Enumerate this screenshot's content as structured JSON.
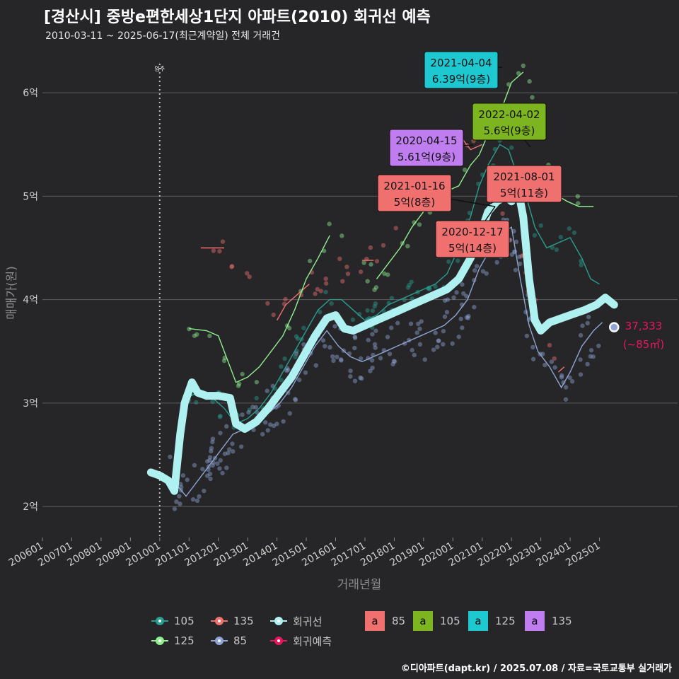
{
  "title": "[경산시] 중방e편한세상1단지 아파트(2010) 회귀선 예측",
  "subtitle": "2010-03-11 ~ 2025-06-17(최근계약일) 전체 거래건",
  "caption": "©디아파트(dapt.kr) / 2025.07.08 / 자료=국토교통부 실거래가",
  "chart_data": {
    "type": "scatter",
    "xlabel": "거래년월",
    "ylabel": "매매가(원)",
    "x_ticks": [
      "200601",
      "200701",
      "200801",
      "200901",
      "201001",
      "201101",
      "201201",
      "201301",
      "201401",
      "201501",
      "201601",
      "201701",
      "201801",
      "201901",
      "202001",
      "202101",
      "202201",
      "202301",
      "202401",
      "202501"
    ],
    "y_ticks": [
      {
        "value": 2,
        "label": "2억"
      },
      {
        "value": 3,
        "label": "3억"
      },
      {
        "value": 4,
        "label": "4억"
      },
      {
        "value": 5,
        "label": "5억"
      },
      {
        "value": 6,
        "label": "6억"
      }
    ],
    "ylim": [
      1.7,
      6.5
    ],
    "grid": true,
    "vline": {
      "x": "2010-01",
      "label": "입주"
    },
    "series": [
      {
        "name": "105",
        "color": "#2a9d8f",
        "line": [
          [
            2010.9,
            3.05
          ],
          [
            2011.3,
            3.1
          ],
          [
            2011.8,
            3.05
          ],
          [
            2012.2,
            2.95
          ],
          [
            2012.6,
            2.8
          ],
          [
            2013.0,
            2.85
          ],
          [
            2013.4,
            2.95
          ],
          [
            2013.8,
            3.1
          ],
          [
            2014.2,
            3.3
          ],
          [
            2014.6,
            3.5
          ],
          [
            2015.0,
            3.7
          ],
          [
            2015.4,
            3.9
          ],
          [
            2015.8,
            4.0
          ],
          [
            2016.2,
            4.0
          ],
          [
            2016.6,
            3.9
          ],
          [
            2017.0,
            3.8
          ],
          [
            2017.4,
            3.85
          ],
          [
            2017.8,
            3.95
          ],
          [
            2018.2,
            4.0
          ],
          [
            2018.6,
            4.05
          ],
          [
            2019.0,
            4.1
          ],
          [
            2019.4,
            4.15
          ],
          [
            2019.8,
            4.25
          ],
          [
            2020.2,
            4.5
          ],
          [
            2020.6,
            4.8
          ],
          [
            2020.9,
            5.1
          ],
          [
            2021.2,
            5.3
          ],
          [
            2021.6,
            5.5
          ],
          [
            2021.9,
            5.45
          ],
          [
            2022.2,
            5.2
          ],
          [
            2022.5,
            5.0
          ],
          [
            2022.8,
            4.7
          ],
          [
            2023.2,
            4.5
          ],
          [
            2023.6,
            4.55
          ],
          [
            2024.0,
            4.6
          ],
          [
            2024.4,
            4.4
          ],
          [
            2024.7,
            4.2
          ],
          [
            2025.0,
            4.15
          ]
        ]
      },
      {
        "name": "135",
        "color": "#f07070",
        "line": [
          [
            2011.4,
            4.5
          ],
          [
            2012.2,
            4.5
          ],
          [
            2014.0,
            3.8
          ],
          [
            2014.3,
            3.95
          ],
          [
            2014.7,
            4.05
          ],
          [
            2015.1,
            4.15
          ],
          [
            2016.9,
            4.38
          ],
          [
            2017.3,
            4.38
          ],
          [
            2019.2,
            5.3
          ],
          [
            2019.8,
            5.45
          ],
          [
            2020.2,
            5.6
          ],
          [
            2020.6,
            5.45
          ],
          [
            2021.0,
            5.5
          ],
          [
            2023.6,
            3.3
          ],
          [
            2023.8,
            3.35
          ]
        ]
      },
      {
        "name": "125",
        "color": "#90ee90",
        "line": [
          [
            2011.0,
            3.72
          ],
          [
            2011.6,
            3.7
          ],
          [
            2012.0,
            3.65
          ],
          [
            2012.6,
            3.2
          ],
          [
            2013.0,
            3.25
          ],
          [
            2013.4,
            3.35
          ],
          [
            2013.8,
            3.5
          ],
          [
            2014.2,
            3.65
          ],
          [
            2014.6,
            3.9
          ],
          [
            2015.0,
            4.2
          ],
          [
            2015.4,
            4.4
          ],
          [
            2015.8,
            4.62
          ],
          [
            2017.4,
            4.2
          ],
          [
            2017.8,
            4.35
          ],
          [
            2018.2,
            4.5
          ],
          [
            2018.6,
            4.7
          ],
          [
            2019.0,
            4.85
          ],
          [
            2019.4,
            5.0
          ],
          [
            2019.8,
            5.05
          ],
          [
            2020.2,
            5.1
          ],
          [
            2020.6,
            5.3
          ],
          [
            2020.9,
            5.4
          ],
          [
            2021.2,
            5.6
          ],
          [
            2021.6,
            5.8
          ],
          [
            2022.0,
            6.1
          ],
          [
            2022.4,
            6.2
          ],
          [
            2023.6,
            5.0
          ],
          [
            2023.9,
            4.95
          ],
          [
            2024.3,
            4.9
          ],
          [
            2024.8,
            4.9
          ]
        ]
      },
      {
        "name": "85",
        "color": "#8ea4d2",
        "line": [
          [
            2010.3,
            2.25
          ],
          [
            2010.6,
            2.2
          ],
          [
            2010.9,
            2.1
          ],
          [
            2011.3,
            2.25
          ],
          [
            2011.7,
            2.4
          ],
          [
            2012.1,
            2.55
          ],
          [
            2012.5,
            2.7
          ],
          [
            2012.9,
            2.75
          ],
          [
            2013.3,
            2.85
          ],
          [
            2013.7,
            2.9
          ],
          [
            2014.1,
            3.0
          ],
          [
            2014.5,
            3.15
          ],
          [
            2014.9,
            3.35
          ],
          [
            2015.3,
            3.55
          ],
          [
            2015.7,
            3.7
          ],
          [
            2016.1,
            3.55
          ],
          [
            2016.5,
            3.45
          ],
          [
            2016.9,
            3.4
          ],
          [
            2017.3,
            3.45
          ],
          [
            2017.7,
            3.5
          ],
          [
            2018.1,
            3.55
          ],
          [
            2018.5,
            3.6
          ],
          [
            2018.9,
            3.65
          ],
          [
            2019.3,
            3.7
          ],
          [
            2019.7,
            3.75
          ],
          [
            2020.1,
            3.85
          ],
          [
            2020.5,
            4.0
          ],
          [
            2020.9,
            4.3
          ],
          [
            2021.3,
            4.5
          ],
          [
            2021.7,
            4.65
          ],
          [
            2022.0,
            4.7
          ],
          [
            2022.3,
            4.2
          ],
          [
            2022.6,
            3.75
          ],
          [
            2022.9,
            3.5
          ],
          [
            2023.3,
            3.35
          ],
          [
            2023.7,
            3.15
          ],
          [
            2024.0,
            3.3
          ],
          [
            2024.4,
            3.55
          ],
          [
            2024.8,
            3.7
          ],
          [
            2025.1,
            3.78
          ]
        ]
      },
      {
        "name": "회귀선",
        "color": "#aff0f0",
        "line": [
          [
            2009.7,
            2.33
          ],
          [
            2010.0,
            2.3
          ],
          [
            2010.3,
            2.25
          ],
          [
            2010.5,
            2.15
          ],
          [
            2010.7,
            2.7
          ],
          [
            2010.85,
            3.0
          ],
          [
            2011.1,
            3.2
          ],
          [
            2011.3,
            3.1
          ],
          [
            2011.6,
            3.07
          ],
          [
            2012.0,
            3.07
          ],
          [
            2012.4,
            3.05
          ],
          [
            2012.6,
            2.8
          ],
          [
            2012.9,
            2.75
          ],
          [
            2013.3,
            2.82
          ],
          [
            2013.7,
            2.95
          ],
          [
            2014.1,
            3.1
          ],
          [
            2014.5,
            3.25
          ],
          [
            2014.9,
            3.45
          ],
          [
            2015.3,
            3.65
          ],
          [
            2015.7,
            3.82
          ],
          [
            2016.0,
            3.85
          ],
          [
            2016.3,
            3.72
          ],
          [
            2016.6,
            3.7
          ],
          [
            2017.0,
            3.75
          ],
          [
            2017.4,
            3.8
          ],
          [
            2017.8,
            3.85
          ],
          [
            2018.2,
            3.9
          ],
          [
            2018.6,
            3.95
          ],
          [
            2019.0,
            4.0
          ],
          [
            2019.4,
            4.05
          ],
          [
            2019.8,
            4.1
          ],
          [
            2020.2,
            4.2
          ],
          [
            2020.6,
            4.4
          ],
          [
            2020.9,
            4.6
          ],
          [
            2021.2,
            4.85
          ],
          [
            2021.5,
            4.95
          ],
          [
            2021.8,
            5.0
          ],
          [
            2022.0,
            4.95
          ],
          [
            2022.2,
            5.1
          ],
          [
            2022.4,
            4.8
          ],
          [
            2022.6,
            4.2
          ],
          [
            2022.8,
            3.8
          ],
          [
            2023.0,
            3.7
          ],
          [
            2023.3,
            3.78
          ],
          [
            2023.7,
            3.82
          ],
          [
            2024.1,
            3.86
          ],
          [
            2024.5,
            3.9
          ],
          [
            2024.9,
            3.95
          ],
          [
            2025.2,
            4.02
          ],
          [
            2025.5,
            3.95
          ]
        ]
      },
      {
        "name": "회귀예측",
        "color": "#e8175d",
        "points": [
          [
            2025.5,
            3.7333
          ]
        ]
      }
    ],
    "annotations": [
      {
        "date": "2021-04-04",
        "price": "6.39억(9층)",
        "area": "125",
        "color": "#1ec8d0"
      },
      {
        "date": "2022-04-02",
        "price": "5.6억(9층)",
        "area": "105",
        "color": "#7cb520"
      },
      {
        "date": "2020-04-15",
        "price": "5.61억(9층)",
        "area": "135",
        "color": "#c07df0"
      },
      {
        "date": "2021-01-16",
        "price": "5억(8층)",
        "area": "85",
        "color": "#f07070"
      },
      {
        "date": "2021-08-01",
        "price": "5억(11층)",
        "area": "85",
        "color": "#f07070"
      },
      {
        "date": "2020-12-17",
        "price": "5억(14층)",
        "area": "85",
        "color": "#f07070"
      }
    ],
    "forecast_label": {
      "value": "37,333",
      "area": "(~85㎡)",
      "color": "#e8175d"
    },
    "legend": {
      "lines": [
        {
          "name": "105",
          "color": "#2a9d8f"
        },
        {
          "name": "135",
          "color": "#f07070"
        },
        {
          "name": "회귀선",
          "color": "#aff0f0"
        },
        {
          "name": "125",
          "color": "#90ee90"
        },
        {
          "name": "85",
          "color": "#8ea4d2"
        },
        {
          "name": "회귀예측",
          "color": "#e8175d"
        }
      ],
      "boxes": [
        {
          "name": "85",
          "color": "#f07070",
          "glyph": "a"
        },
        {
          "name": "105",
          "color": "#7cb520",
          "glyph": "a"
        },
        {
          "name": "125",
          "color": "#1ec8d0",
          "glyph": "a"
        },
        {
          "name": "135",
          "color": "#c07df0",
          "glyph": "a"
        }
      ]
    }
  }
}
